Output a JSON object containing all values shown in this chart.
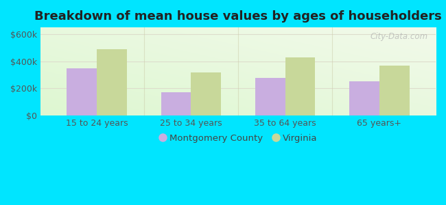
{
  "title": "Breakdown of mean house values by ages of householders",
  "categories": [
    "15 to 24 years",
    "25 to 34 years",
    "35 to 64 years",
    "65 years+"
  ],
  "montgomery_values": [
    350000,
    170000,
    280000,
    255000
  ],
  "virginia_values": [
    490000,
    320000,
    430000,
    370000
  ],
  "montgomery_color": "#c9aee0",
  "virginia_color": "#c8d89a",
  "background_color": "#00e5ff",
  "yticks": [
    0,
    200000,
    400000,
    600000
  ],
  "ylim": [
    0,
    650000
  ],
  "legend_montgomery": "Montgomery County",
  "legend_virginia": "Virginia",
  "title_fontsize": 13,
  "tick_fontsize": 9,
  "legend_fontsize": 9.5,
  "bar_width": 0.32,
  "watermark": "City-Data.com"
}
